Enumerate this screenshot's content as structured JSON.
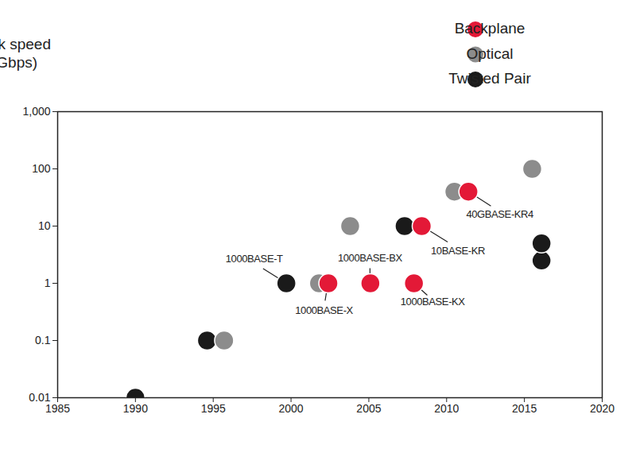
{
  "chart_data": {
    "type": "scatter",
    "ylabel": "Link speed\n(Gbps)",
    "log": "y",
    "grid": false,
    "legend": "top-right",
    "marker": "circle",
    "xlim": [
      1985,
      2020
    ],
    "xticks": [
      1985,
      1990,
      1995,
      2000,
      2005,
      2010,
      2015,
      2020
    ],
    "ylim": [
      0.01,
      1000
    ],
    "yticks": [
      0.01,
      0.1,
      1,
      10,
      100,
      {
        "value": 1000,
        "label": "1,000"
      }
    ],
    "series": [
      {
        "name": "Backplane",
        "color": "#e31937",
        "x": [
          2002.4,
          2005.1,
          2007.9,
          2008.4,
          2011.4
        ],
        "values": [
          1,
          1,
          1,
          10,
          40
        ],
        "labels": [
          "1000BASE-X",
          "1000BASE-BX",
          "1000BASE-KX",
          "10BASE-KR",
          "40GBASE-KR4"
        ]
      },
      {
        "name": "Optical",
        "color": "#8c8c8c",
        "x": [
          1995.7,
          2001.8,
          2003.8,
          2010.5,
          2015.5
        ],
        "values": [
          0.1,
          1,
          10,
          40,
          100
        ],
        "labels": [
          null,
          null,
          null,
          null,
          null
        ]
      },
      {
        "name": "Twisted Pair",
        "color": "#1a1a1a",
        "x": [
          1990,
          1994.6,
          1999.7,
          2007.3,
          2016.1,
          2016.1
        ],
        "values": [
          0.01,
          0.1,
          1,
          10,
          2.5,
          5
        ],
        "labels": [
          null,
          null,
          "1000BASE-T",
          null,
          null,
          null
        ]
      }
    ]
  }
}
